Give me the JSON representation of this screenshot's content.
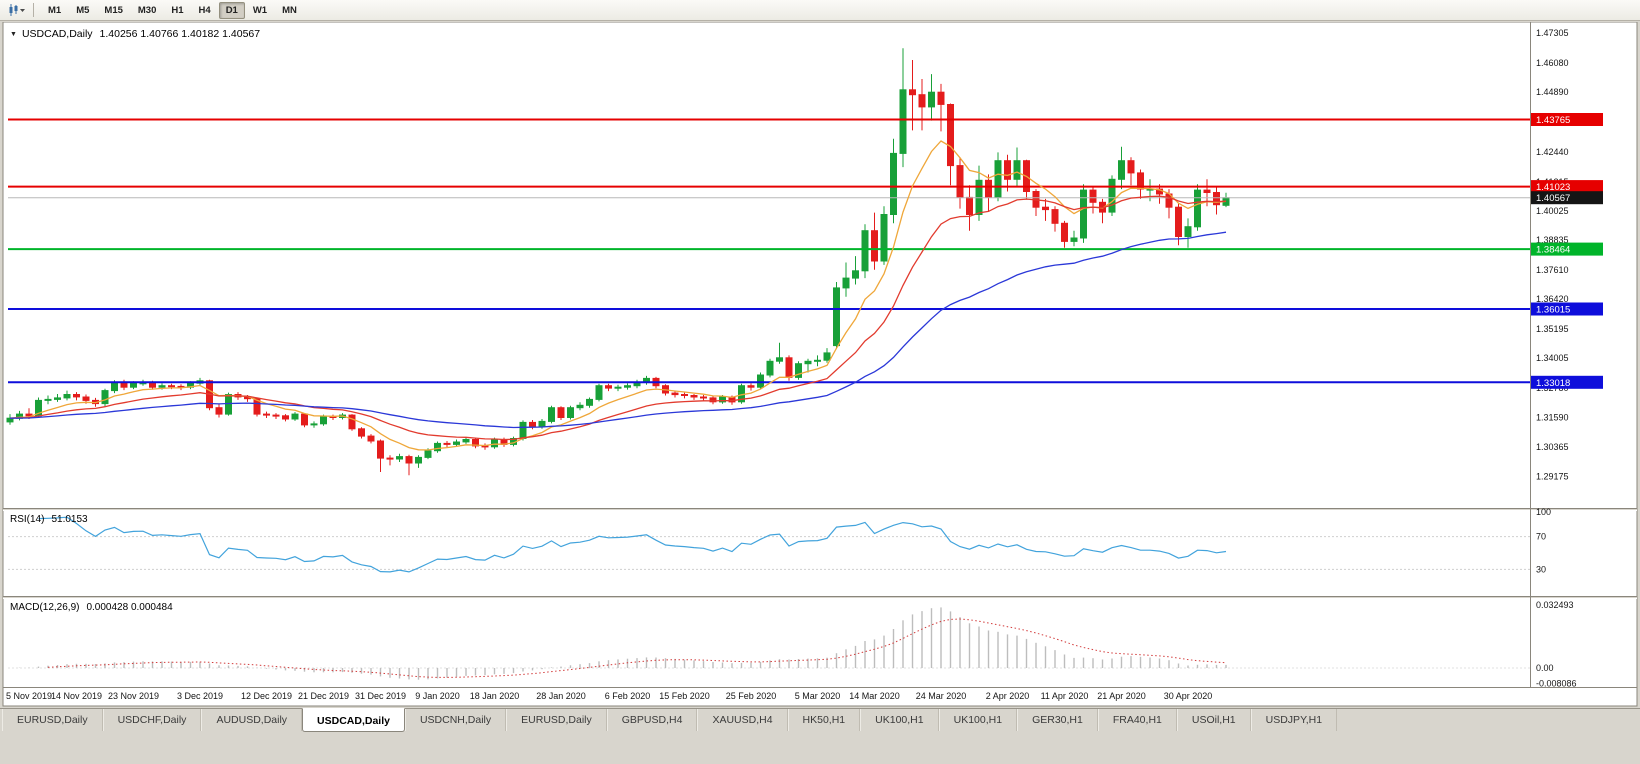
{
  "toolbar": {
    "timeframes": [
      "M1",
      "M5",
      "M15",
      "M30",
      "H1",
      "H4",
      "D1",
      "W1",
      "MN"
    ],
    "active": "D1"
  },
  "chart": {
    "title_symbol": "USDCAD,Daily",
    "title_ohlc": "1.40256 1.40766 1.40182 1.40567"
  },
  "indicators": {
    "rsi": {
      "label": "RSI(14)",
      "value": "51.0153"
    },
    "macd": {
      "label": "MACD(12,26,9)",
      "values": "0.000428 0.000484"
    }
  },
  "chart_data": {
    "type": "candlestick",
    "symbol": "USDCAD",
    "timeframe": "Daily",
    "x_labels": [
      {
        "i": 0,
        "t": "5 Nov 2019"
      },
      {
        "i": 7,
        "t": "14 Nov 2019"
      },
      {
        "i": 13,
        "t": "23 Nov 2019"
      },
      {
        "i": 20,
        "t": "3 Dec 2019"
      },
      {
        "i": 27,
        "t": "12 Dec 2019"
      },
      {
        "i": 33,
        "t": "21 Dec 2019"
      },
      {
        "i": 39,
        "t": "31 Dec 2019"
      },
      {
        "i": 45,
        "t": "9 Jan 2020"
      },
      {
        "i": 51,
        "t": "18 Jan 2020"
      },
      {
        "i": 58,
        "t": "28 Jan 2020"
      },
      {
        "i": 65,
        "t": "6 Feb 2020"
      },
      {
        "i": 71,
        "t": "15 Feb 2020"
      },
      {
        "i": 78,
        "t": "25 Feb 2020"
      },
      {
        "i": 85,
        "t": "5 Mar 2020"
      },
      {
        "i": 91,
        "t": "14 Mar 2020"
      },
      {
        "i": 98,
        "t": "24 Mar 2020"
      },
      {
        "i": 105,
        "t": "2 Apr 2020"
      },
      {
        "i": 111,
        "t": "11 Apr 2020"
      },
      {
        "i": 117,
        "t": "21 Apr 2020"
      },
      {
        "i": 124,
        "t": "30 Apr 2020"
      }
    ],
    "main": {
      "ylim": [
        1.2788,
        1.4767
      ],
      "y_ticks": [
        "1.47305",
        "1.46080",
        "1.44890",
        "1.43665",
        "1.42440",
        "1.41215",
        "1.40025",
        "1.38835",
        "1.37610",
        "1.36420",
        "1.35195",
        "1.34005",
        "1.32780",
        "1.31590",
        "1.30365",
        "1.29175"
      ],
      "hlines": [
        {
          "price": 1.43765,
          "label": "1.43765",
          "color": "#e60000",
          "width": 2
        },
        {
          "price": 1.41023,
          "label": "1.41023",
          "color": "#e60000",
          "width": 2
        },
        {
          "price": 1.38464,
          "label": "1.38464",
          "color": "#00b42a",
          "width": 2
        },
        {
          "price": 1.36015,
          "label": "1.36015",
          "color": "#0e0edb",
          "width": 2
        },
        {
          "price": 1.33018,
          "label": "1.33018",
          "color": "#0e0edb",
          "width": 2
        }
      ],
      "current_price": {
        "price": 1.40567,
        "label": "1.40567",
        "line_color": "#b8b8b8",
        "tag_color": "#151515"
      },
      "moving_averages": [
        {
          "period": 8,
          "color": "#efa73a"
        },
        {
          "period": 20,
          "color": "#e23b2e"
        },
        {
          "period": 50,
          "color": "#2b38d8"
        }
      ],
      "colors": {
        "up": "#18a038",
        "down": "#e41c1c"
      }
    },
    "candles": [
      [
        1.314,
        1.3172,
        1.3128,
        1.3155
      ],
      [
        1.3155,
        1.3185,
        1.3146,
        1.3172
      ],
      [
        1.3172,
        1.3196,
        1.3152,
        1.3165
      ],
      [
        1.3165,
        1.324,
        1.3158,
        1.3228
      ],
      [
        1.3228,
        1.3248,
        1.3212,
        1.3232
      ],
      [
        1.3232,
        1.3254,
        1.3222,
        1.3238
      ],
      [
        1.3238,
        1.3268,
        1.3228,
        1.3252
      ],
      [
        1.3252,
        1.3262,
        1.3228,
        1.3242
      ],
      [
        1.3242,
        1.3252,
        1.3214,
        1.3228
      ],
      [
        1.3228,
        1.3238,
        1.3202,
        1.3215
      ],
      [
        1.3215,
        1.3276,
        1.3205,
        1.3268
      ],
      [
        1.3268,
        1.331,
        1.3258,
        1.3302
      ],
      [
        1.3302,
        1.3312,
        1.327,
        1.3282
      ],
      [
        1.3282,
        1.3306,
        1.3274,
        1.3298
      ],
      [
        1.3298,
        1.3312,
        1.3288,
        1.33
      ],
      [
        1.33,
        1.3308,
        1.3272,
        1.3282
      ],
      [
        1.3282,
        1.3298,
        1.3272,
        1.3288
      ],
      [
        1.3288,
        1.3296,
        1.3274,
        1.3285
      ],
      [
        1.3285,
        1.3294,
        1.327,
        1.3282
      ],
      [
        1.3282,
        1.3306,
        1.3274,
        1.3298
      ],
      [
        1.3298,
        1.332,
        1.329,
        1.3308
      ],
      [
        1.3308,
        1.3312,
        1.3188,
        1.3198
      ],
      [
        1.3198,
        1.3212,
        1.3158,
        1.3172
      ],
      [
        1.3172,
        1.326,
        1.3166,
        1.3252
      ],
      [
        1.3252,
        1.3262,
        1.323,
        1.3242
      ],
      [
        1.3242,
        1.325,
        1.3222,
        1.3235
      ],
      [
        1.3235,
        1.324,
        1.3162,
        1.3172
      ],
      [
        1.3172,
        1.3182,
        1.3156,
        1.3168
      ],
      [
        1.3168,
        1.3176,
        1.3152,
        1.3165
      ],
      [
        1.3165,
        1.3172,
        1.3142,
        1.3152
      ],
      [
        1.3152,
        1.318,
        1.3144,
        1.3172
      ],
      [
        1.3172,
        1.3176,
        1.3118,
        1.3128
      ],
      [
        1.3128,
        1.3142,
        1.3116,
        1.3132
      ],
      [
        1.3132,
        1.317,
        1.3124,
        1.3162
      ],
      [
        1.3162,
        1.317,
        1.3148,
        1.3158
      ],
      [
        1.3158,
        1.3176,
        1.315,
        1.3168
      ],
      [
        1.3168,
        1.3172,
        1.3104,
        1.3112
      ],
      [
        1.3112,
        1.3118,
        1.3072,
        1.3082
      ],
      [
        1.3082,
        1.309,
        1.3052,
        1.3062
      ],
      [
        1.3062,
        1.3068,
        1.2935,
        1.2992
      ],
      [
        1.2992,
        1.3004,
        1.2962,
        1.2988
      ],
      [
        1.2988,
        1.301,
        1.2976,
        1.2998
      ],
      [
        1.2998,
        1.3006,
        1.2922,
        1.2972
      ],
      [
        1.2972,
        1.3004,
        1.2952,
        1.2995
      ],
      [
        1.2995,
        1.3032,
        1.2988,
        1.3022
      ],
      [
        1.3022,
        1.306,
        1.3014,
        1.3052
      ],
      [
        1.3052,
        1.3062,
        1.3036,
        1.3048
      ],
      [
        1.3048,
        1.3068,
        1.304,
        1.3058
      ],
      [
        1.3058,
        1.3078,
        1.305,
        1.3068
      ],
      [
        1.3068,
        1.3074,
        1.3032,
        1.3042
      ],
      [
        1.3042,
        1.3052,
        1.3026,
        1.3038
      ],
      [
        1.3038,
        1.3076,
        1.303,
        1.3068
      ],
      [
        1.3068,
        1.3076,
        1.3038,
        1.3048
      ],
      [
        1.3048,
        1.308,
        1.304,
        1.3072
      ],
      [
        1.3072,
        1.3146,
        1.3064,
        1.3138
      ],
      [
        1.3138,
        1.3148,
        1.311,
        1.3122
      ],
      [
        1.3122,
        1.3152,
        1.3112,
        1.3142
      ],
      [
        1.3142,
        1.3206,
        1.3134,
        1.3198
      ],
      [
        1.3198,
        1.3204,
        1.3148,
        1.3158
      ],
      [
        1.3158,
        1.3206,
        1.315,
        1.3198
      ],
      [
        1.3198,
        1.322,
        1.3188,
        1.3208
      ],
      [
        1.3208,
        1.324,
        1.3198,
        1.3232
      ],
      [
        1.3232,
        1.3296,
        1.3224,
        1.3288
      ],
      [
        1.3288,
        1.3296,
        1.3266,
        1.3278
      ],
      [
        1.3278,
        1.3292,
        1.3266,
        1.3282
      ],
      [
        1.3282,
        1.3298,
        1.3272,
        1.3288
      ],
      [
        1.3288,
        1.3312,
        1.3278,
        1.3302
      ],
      [
        1.3302,
        1.3328,
        1.3292,
        1.3318
      ],
      [
        1.3318,
        1.3324,
        1.3278,
        1.3288
      ],
      [
        1.3288,
        1.3294,
        1.3248,
        1.3258
      ],
      [
        1.3258,
        1.3266,
        1.324,
        1.3252
      ],
      [
        1.3252,
        1.326,
        1.3236,
        1.3248
      ],
      [
        1.3248,
        1.3254,
        1.323,
        1.3242
      ],
      [
        1.3242,
        1.325,
        1.3226,
        1.3238
      ],
      [
        1.3238,
        1.3246,
        1.3212,
        1.3222
      ],
      [
        1.3222,
        1.325,
        1.3214,
        1.3242
      ],
      [
        1.3242,
        1.3248,
        1.321,
        1.3222
      ],
      [
        1.3222,
        1.3296,
        1.3214,
        1.3288
      ],
      [
        1.3288,
        1.3298,
        1.3268,
        1.3282
      ],
      [
        1.3282,
        1.3342,
        1.3274,
        1.3332
      ],
      [
        1.3332,
        1.3398,
        1.3322,
        1.3388
      ],
      [
        1.3388,
        1.3464,
        1.3378,
        1.3402
      ],
      [
        1.3402,
        1.3412,
        1.3308,
        1.3322
      ],
      [
        1.3322,
        1.3388,
        1.3312,
        1.3378
      ],
      [
        1.3378,
        1.3398,
        1.3342,
        1.3388
      ],
      [
        1.3388,
        1.3412,
        1.3368,
        1.3392
      ],
      [
        1.3392,
        1.3442,
        1.3382,
        1.3422
      ],
      [
        1.3452,
        1.3712,
        1.3438,
        1.3688
      ],
      [
        1.3688,
        1.3792,
        1.3652,
        1.3728
      ],
      [
        1.3728,
        1.3818,
        1.3702,
        1.3758
      ],
      [
        1.3758,
        1.3948,
        1.3728,
        1.3922
      ],
      [
        1.3922,
        1.3996,
        1.3762,
        1.3798
      ],
      [
        1.3798,
        1.4022,
        1.3782,
        1.3988
      ],
      [
        1.3988,
        1.4298,
        1.3952,
        1.4238
      ],
      [
        1.4238,
        1.4668,
        1.4182,
        1.4498
      ],
      [
        1.4498,
        1.462,
        1.4332,
        1.4478
      ],
      [
        1.4478,
        1.4542,
        1.4332,
        1.4428
      ],
      [
        1.4428,
        1.4562,
        1.4372,
        1.4488
      ],
      [
        1.4488,
        1.4522,
        1.4328,
        1.4438
      ],
      [
        1.4438,
        1.4442,
        1.4108,
        1.4188
      ],
      [
        1.4188,
        1.4222,
        1.4012,
        1.4058
      ],
      [
        1.4058,
        1.4108,
        1.3922,
        1.3988
      ],
      [
        1.3988,
        1.4188,
        1.3962,
        1.4128
      ],
      [
        1.4128,
        1.4152,
        1.4002,
        1.4058
      ],
      [
        1.4058,
        1.4242,
        1.4042,
        1.4208
      ],
      [
        1.4208,
        1.4232,
        1.4082,
        1.4132
      ],
      [
        1.4132,
        1.4262,
        1.4102,
        1.4208
      ],
      [
        1.4208,
        1.4212,
        1.4052,
        1.4082
      ],
      [
        1.4082,
        1.4092,
        1.3982,
        1.4018
      ],
      [
        1.4018,
        1.4052,
        1.3962,
        1.4008
      ],
      [
        1.4008,
        1.4022,
        1.3918,
        1.3952
      ],
      [
        1.3952,
        1.3962,
        1.3852,
        1.3878
      ],
      [
        1.3878,
        1.3922,
        1.3858,
        1.3892
      ],
      [
        1.3892,
        1.4112,
        1.3872,
        1.4088
      ],
      [
        1.4088,
        1.4102,
        1.3992,
        1.4038
      ],
      [
        1.4038,
        1.4052,
        1.3952,
        1.3998
      ],
      [
        1.3998,
        1.4148,
        1.3982,
        1.4132
      ],
      [
        1.4132,
        1.4265,
        1.4092,
        1.4208
      ],
      [
        1.4208,
        1.4222,
        1.4108,
        1.4158
      ],
      [
        1.4158,
        1.4172,
        1.4052,
        1.4092
      ],
      [
        1.4092,
        1.4132,
        1.4042,
        1.4092
      ],
      [
        1.4092,
        1.4112,
        1.4032,
        1.4072
      ],
      [
        1.4072,
        1.4092,
        1.3972,
        1.4018
      ],
      [
        1.4018,
        1.4032,
        1.3862,
        1.3898
      ],
      [
        1.3898,
        1.3972,
        1.3852,
        1.3938
      ],
      [
        1.3938,
        1.4112,
        1.3922,
        1.4088
      ],
      [
        1.4088,
        1.4132,
        1.4022,
        1.4078
      ],
      [
        1.4078,
        1.4102,
        1.3988,
        1.4028
      ],
      [
        1.40256,
        1.40766,
        1.40182,
        1.40567
      ]
    ],
    "rsi_pane": {
      "period": 14,
      "line_color": "#42a3dc",
      "levels": [
        70,
        30
      ],
      "range": [
        0,
        100
      ],
      "axis_labels": [
        {
          "v": 100,
          "t": "100"
        },
        {
          "v": 70,
          "t": "70"
        },
        {
          "v": 30,
          "t": "30"
        }
      ]
    },
    "macd_pane": {
      "fast": 12,
      "slow": 26,
      "signal": 9,
      "histogram_color": "#bdbdbd",
      "signal_color": "#d23b3b",
      "ylim": [
        -0.0098,
        0.0356
      ],
      "axis_labels": [
        {
          "v": 0.032493,
          "t": "0.032493"
        },
        {
          "v": 0,
          "t": "0.00"
        },
        {
          "v": -0.008086,
          "t": "-0.008086"
        }
      ]
    }
  },
  "window_tabs": {
    "active_index": 3,
    "items": [
      "EURUSD,Daily",
      "USDCHF,Daily",
      "AUDUSD,Daily",
      "USDCAD,Daily",
      "USDCNH,Daily",
      "EURUSD,Daily",
      "GBPUSD,H4",
      "XAUUSD,H4",
      "HK50,H1",
      "UK100,H1",
      "UK100,H1",
      "GER30,H1",
      "FRA40,H1",
      "USOil,H1",
      "USDJPY,H1"
    ]
  }
}
